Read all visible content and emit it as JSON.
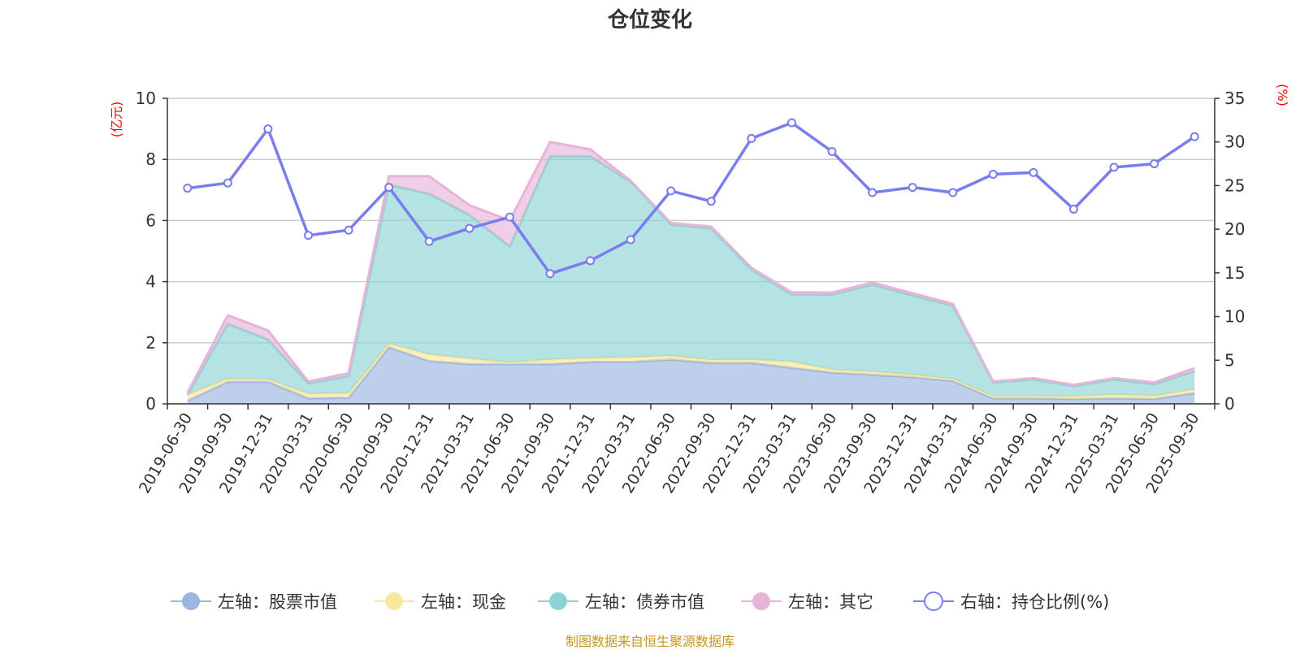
{
  "chart_data": {
    "type": "area",
    "title": "仓位变化",
    "left_axis_unit": "(亿元)",
    "right_axis_unit": "(%)",
    "ylim_left": [
      0,
      10
    ],
    "yticks_left": [
      "0",
      "2",
      "4",
      "6",
      "8",
      "10"
    ],
    "ylim_right": [
      0,
      35
    ],
    "yticks_right": [
      "0",
      "5",
      "10",
      "15",
      "20",
      "25",
      "30",
      "35"
    ],
    "categories": [
      "2019-06-30",
      "2019-09-30",
      "2019-12-31",
      "2020-03-31",
      "2020-06-30",
      "2020-09-30",
      "2020-12-31",
      "2021-03-31",
      "2021-06-30",
      "2021-09-30",
      "2021-12-31",
      "2022-03-31",
      "2022-06-30",
      "2022-09-30",
      "2022-12-31",
      "2023-03-31",
      "2023-06-30",
      "2023-09-30",
      "2023-12-31",
      "2024-03-31",
      "2024-06-30",
      "2024-09-30",
      "2024-12-31",
      "2025-03-31",
      "2025-06-30",
      "2025-09-30"
    ],
    "stacked_series": [
      {
        "name": "左轴：股票市值",
        "color": "#9bb6e0",
        "values": [
          0.1,
          0.72,
          0.72,
          0.18,
          0.2,
          1.85,
          1.4,
          1.3,
          1.3,
          1.3,
          1.37,
          1.37,
          1.45,
          1.34,
          1.34,
          1.18,
          1.02,
          0.95,
          0.87,
          0.75,
          0.18,
          0.18,
          0.16,
          0.18,
          0.16,
          0.35
        ]
      },
      {
        "name": "左轴：现金",
        "color": "#f9e6a0",
        "values": [
          0.2,
          0.1,
          0.08,
          0.15,
          0.15,
          0.12,
          0.22,
          0.18,
          0.05,
          0.15,
          0.13,
          0.15,
          0.12,
          0.1,
          0.1,
          0.2,
          0.1,
          0.1,
          0.08,
          0.06,
          0.07,
          0.07,
          0.09,
          0.12,
          0.1,
          0.12
        ]
      },
      {
        "name": "左轴：债券市值",
        "color": "#8dd3d3",
        "values": [
          0.0,
          1.8,
          1.3,
          0.34,
          0.55,
          5.2,
          5.25,
          4.7,
          3.8,
          6.65,
          6.6,
          5.75,
          4.3,
          4.3,
          2.95,
          2.2,
          2.45,
          2.85,
          2.6,
          2.4,
          0.45,
          0.55,
          0.33,
          0.5,
          0.38,
          0.6
        ]
      },
      {
        "name": "左轴：其它",
        "color": "#e6b3d9",
        "values": [
          0.06,
          0.28,
          0.3,
          0.06,
          0.1,
          0.28,
          0.58,
          0.32,
          0.85,
          0.47,
          0.23,
          0.03,
          0.05,
          0.06,
          0.06,
          0.07,
          0.07,
          0.07,
          0.07,
          0.06,
          0.03,
          0.04,
          0.04,
          0.04,
          0.06,
          0.1
        ]
      }
    ],
    "line_series": {
      "name": "右轴：持仓比例(%)",
      "color": "#7a7df0",
      "values": [
        24.7,
        25.3,
        31.5,
        19.3,
        19.9,
        24.8,
        18.6,
        20.1,
        21.4,
        14.9,
        16.4,
        18.8,
        24.4,
        23.2,
        30.4,
        32.2,
        28.9,
        24.2,
        24.8,
        24.2,
        26.3,
        26.5,
        22.3,
        27.1,
        27.5,
        30.6
      ]
    },
    "grid": true,
    "legend_position": "bottom"
  },
  "source_note": "制图数据来自恒生聚源数据库"
}
